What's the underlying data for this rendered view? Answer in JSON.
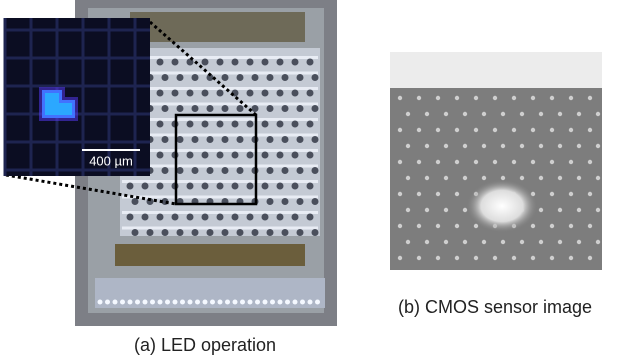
{
  "panel_a": {
    "scale_bar": "400 µm",
    "caption": "(a) LED operation"
  },
  "panel_b": {
    "caption": "(b) CMOS sensor image"
  }
}
